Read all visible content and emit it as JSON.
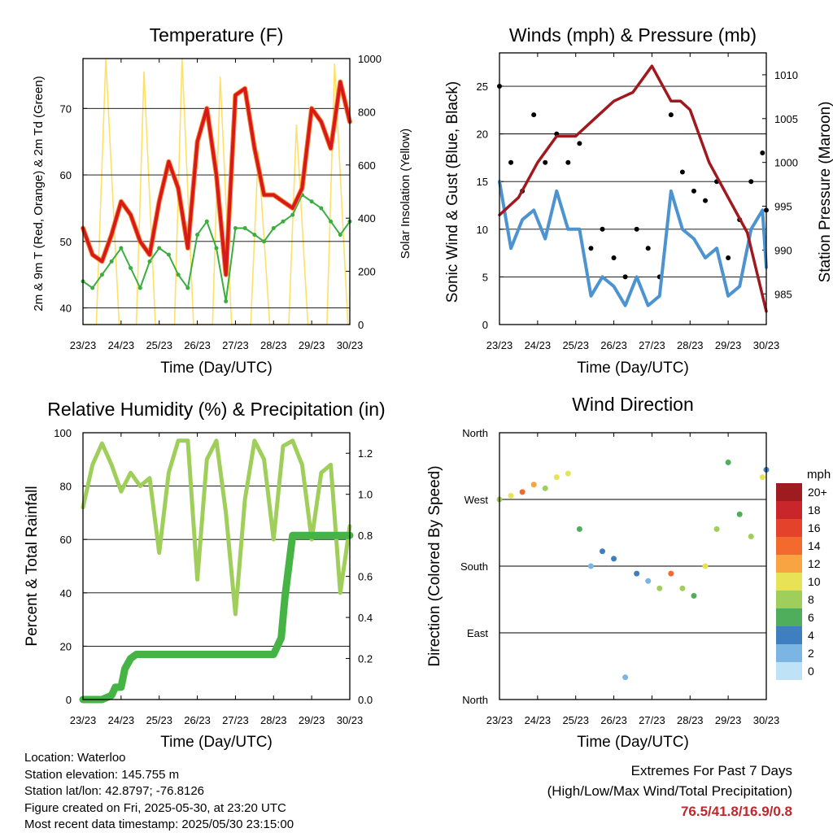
{
  "panels": {
    "temperature": {
      "title": "Temperature (F)",
      "ylabel": "2m & 9m T (Red, Orange) & 2m Td (Green)",
      "y2label": "Solar Insolation (Yellow)",
      "xlabel": "Time (Day/UTC)",
      "xticks": [
        "23/23",
        "24/23",
        "25/23",
        "26/23",
        "27/23",
        "28/23",
        "29/23",
        "30/23"
      ],
      "yticks": [
        "40",
        "50",
        "60",
        "70"
      ],
      "y2ticks": [
        "0",
        "200",
        "400",
        "600",
        "800",
        "1000"
      ]
    },
    "wind": {
      "title": "Winds (mph) & Pressure (mb)",
      "ylabel": "Sonic Wind & Gust (Blue, Black)",
      "y2label": "Station Pressure (Maroon)",
      "xlabel": "Time (Day/UTC)",
      "xticks": [
        "23/23",
        "24/23",
        "25/23",
        "26/23",
        "27/23",
        "28/23",
        "29/23",
        "30/23"
      ],
      "yticks": [
        "0",
        "5",
        "10",
        "15",
        "20",
        "25"
      ],
      "y2ticks": [
        "985",
        "990",
        "995",
        "1000",
        "1005",
        "1010"
      ]
    },
    "humidity": {
      "title": "Relative Humidity (%) & Precipitation (in)",
      "ylabel": "Percent & Total Rainfall",
      "xlabel": "Time (Day/UTC)",
      "xticks": [
        "23/23",
        "24/23",
        "25/23",
        "26/23",
        "27/23",
        "28/23",
        "29/23",
        "30/23"
      ],
      "yticks": [
        "0",
        "20",
        "40",
        "60",
        "80",
        "100"
      ],
      "y2ticks": [
        "0.0",
        "0.2",
        "0.4",
        "0.6",
        "0.8",
        "1.0",
        "1.2"
      ]
    },
    "direction": {
      "title": "Wind Direction",
      "ylabel": "Direction (Colored By Speed)",
      "xlabel": "Time (Day/UTC)",
      "xticks": [
        "23/23",
        "24/23",
        "25/23",
        "26/23",
        "27/23",
        "28/23",
        "29/23",
        "30/23"
      ],
      "yticks": [
        "North",
        "East",
        "South",
        "West",
        "North"
      ],
      "colorbar_title": "mph",
      "colorbar_labels": [
        "20+",
        "18",
        "16",
        "14",
        "12",
        "10",
        "8",
        "6",
        "4",
        "2",
        "0"
      ],
      "colorbar_colors": [
        "#9e1b1f",
        "#c8262b",
        "#e4422b",
        "#f26a2d",
        "#f9a443",
        "#e8e356",
        "#9fcf5a",
        "#4fae5c",
        "#3f7fc0",
        "#7ab5e4",
        "#bfe2f7"
      ]
    }
  },
  "info": {
    "location": "Location: Waterloo",
    "elevation": "Station elevation: 145.755 m",
    "latlon": "Station lat/lon: 42.8797; -76.8126",
    "created": "Figure created on Fri, 2025-05-30, at 23:20 UTC",
    "recent": "Most recent data timestamp: 2025/05/30 23:15:00"
  },
  "extremes": {
    "title": "Extremes For Past 7 Days",
    "subtitle": "(High/Low/Max Wind/Total Precipitation)",
    "values": "76.5/41.8/16.9/0.8"
  },
  "colors": {
    "temp_2m": "#d7191c",
    "temp_9m": "#f7882f",
    "dewpoint": "#3aae3f",
    "solar": "#ffe066",
    "wind": "#4c93d0",
    "gust": "#000000",
    "pressure": "#a0191e",
    "rh": "#9fcf5a",
    "precip": "#45b445"
  },
  "chart_data": [
    {
      "type": "line",
      "title": "Temperature (F)",
      "xlabel": "Time (Day/UTC)",
      "ylabel": "2m & 9m T (Red, Orange) & 2m Td (Green)",
      "y2label": "Solar Insolation (Yellow)",
      "xlim": [
        0,
        7
      ],
      "ylim": [
        37.5,
        77.5
      ],
      "y2lim": [
        0,
        1000
      ],
      "series": [
        {
          "name": "2m T",
          "x": [
            0,
            0.25,
            0.5,
            0.75,
            1,
            1.25,
            1.5,
            1.75,
            2,
            2.25,
            2.5,
            2.75,
            3,
            3.25,
            3.5,
            3.75,
            4,
            4.25,
            4.5,
            4.75,
            5,
            5.25,
            5.5,
            5.75,
            6,
            6.25,
            6.5,
            6.75,
            7
          ],
          "values": [
            52,
            48,
            47,
            51,
            56,
            54,
            50,
            48,
            56,
            62,
            58,
            49,
            65,
            70,
            60,
            45,
            72,
            73,
            64,
            57,
            57,
            56,
            55,
            58,
            70,
            68,
            64,
            74,
            68
          ]
        },
        {
          "name": "2m Td",
          "x": [
            0,
            0.25,
            0.5,
            0.75,
            1,
            1.25,
            1.5,
            1.75,
            2,
            2.25,
            2.5,
            2.75,
            3,
            3.25,
            3.5,
            3.75,
            4,
            4.25,
            4.5,
            4.75,
            5,
            5.25,
            5.5,
            5.75,
            6,
            6.25,
            6.5,
            6.75,
            7
          ],
          "values": [
            44,
            43,
            45,
            47,
            49,
            46,
            43,
            47,
            49,
            48,
            45,
            43,
            51,
            53,
            49,
            41,
            52,
            52,
            51,
            50,
            52,
            53,
            54,
            57,
            56,
            55,
            53,
            51,
            53
          ]
        },
        {
          "name": "Solar Insolation",
          "axis": "y2",
          "x": [
            0,
            0.35,
            0.6,
            0.95,
            1.4,
            1.6,
            1.9,
            2.4,
            2.6,
            2.9,
            3.4,
            3.6,
            3.9,
            4.4,
            4.6,
            4.9,
            5.4,
            5.6,
            5.9,
            6.4,
            6.6,
            6.95,
            7
          ],
          "values": [
            0,
            0,
            1000,
            0,
            0,
            950,
            0,
            0,
            1000,
            0,
            0,
            930,
            0,
            0,
            650,
            0,
            0,
            750,
            0,
            0,
            980,
            0,
            0
          ]
        }
      ]
    },
    {
      "type": "scatter",
      "title": "Winds (mph) & Pressure (mb)",
      "xlabel": "Time (Day/UTC)",
      "ylabel": "Sonic Wind & Gust (Blue, Black)",
      "y2label": "Station Pressure (Maroon)",
      "xlim": [
        0,
        7
      ],
      "ylim": [
        0,
        28.5
      ],
      "y2lim": [
        981.5,
        1012.5
      ],
      "series": [
        {
          "name": "Sonic Wind",
          "x": [
            0,
            0.3,
            0.6,
            0.9,
            1.2,
            1.5,
            1.8,
            2.1,
            2.4,
            2.7,
            3,
            3.3,
            3.6,
            3.9,
            4.2,
            4.5,
            4.8,
            5.1,
            5.4,
            5.7,
            6,
            6.3,
            6.6,
            6.9,
            7
          ],
          "values": [
            15,
            8,
            11,
            12,
            9,
            14,
            10,
            10,
            3,
            5,
            4,
            2,
            5,
            2,
            3,
            14,
            10,
            9,
            7,
            8,
            3,
            4,
            10,
            12,
            6
          ]
        },
        {
          "name": "Gust",
          "x": [
            0,
            0.3,
            0.6,
            0.9,
            1.2,
            1.5,
            1.8,
            2.1,
            2.4,
            2.7,
            3,
            3.3,
            3.6,
            3.9,
            4.2,
            4.5,
            4.8,
            5.1,
            5.4,
            5.7,
            6,
            6.3,
            6.6,
            6.9,
            7
          ],
          "values": [
            25,
            17,
            14,
            22,
            17,
            20,
            17,
            19,
            8,
            10,
            7,
            5,
            10,
            8,
            5,
            22,
            16,
            14,
            13,
            15,
            7,
            11,
            15,
            18,
            12
          ]
        },
        {
          "name": "Station Pressure",
          "axis": "y2",
          "x": [
            0,
            0.5,
            1,
            1.5,
            2,
            2.5,
            3,
            3.5,
            4,
            4.25,
            4.5,
            4.75,
            5,
            5.5,
            6,
            6.5,
            7
          ],
          "values": [
            994,
            996,
            1000,
            1003,
            1003,
            1005,
            1007,
            1008,
            1011,
            1009,
            1007,
            1007,
            1006,
            1000,
            996,
            992,
            983
          ]
        }
      ]
    },
    {
      "type": "line",
      "title": "Relative Humidity (%) & Precipitation (in)",
      "xlabel": "Time (Day/UTC)",
      "ylabel": "Percent & Total Rainfall",
      "xlim": [
        0,
        7
      ],
      "ylim": [
        0,
        100
      ],
      "y2lim": [
        0,
        1.3
      ],
      "series": [
        {
          "name": "Relative Humidity",
          "x": [
            0,
            0.25,
            0.5,
            0.75,
            1,
            1.25,
            1.5,
            1.75,
            2,
            2.25,
            2.5,
            2.75,
            3,
            3.25,
            3.5,
            3.75,
            4,
            4.25,
            4.5,
            4.75,
            5,
            5.25,
            5.5,
            5.75,
            6,
            6.25,
            6.5,
            6.75,
            7
          ],
          "values": [
            72,
            88,
            96,
            88,
            78,
            85,
            80,
            83,
            55,
            85,
            97,
            97,
            45,
            90,
            97,
            70,
            32,
            75,
            97,
            90,
            60,
            95,
            97,
            88,
            60,
            85,
            88,
            40,
            65
          ]
        },
        {
          "name": "Total Precipitation",
          "axis": "y2",
          "x": [
            0,
            0.5,
            0.75,
            0.85,
            1,
            1.1,
            1.25,
            1.4,
            2,
            4,
            5,
            5.2,
            5.3,
            5.5,
            6,
            7
          ],
          "values": [
            0,
            0,
            0.02,
            0.06,
            0.06,
            0.15,
            0.2,
            0.22,
            0.22,
            0.22,
            0.22,
            0.3,
            0.5,
            0.8,
            0.8,
            0.8
          ]
        }
      ]
    },
    {
      "type": "scatter",
      "title": "Wind Direction",
      "xlabel": "Time (Day/UTC)",
      "ylabel": "Direction (Colored By Speed)",
      "xlim": [
        0,
        7
      ],
      "ylim": [
        0,
        360
      ],
      "colorbar": {
        "title": "mph",
        "range": [
          0,
          20
        ]
      },
      "series": [
        {
          "name": "Wind Direction",
          "x": [
            0,
            0.3,
            0.6,
            0.9,
            1.2,
            1.5,
            1.8,
            2.1,
            2.4,
            2.7,
            3,
            3.3,
            3.6,
            3.9,
            4.2,
            4.5,
            4.8,
            5.1,
            5.4,
            5.7,
            6,
            6.3,
            6.6,
            6.9,
            7
          ],
          "values": [
            270,
            275,
            280,
            290,
            285,
            300,
            305,
            230,
            180,
            200,
            190,
            30,
            170,
            160,
            150,
            170,
            150,
            140,
            180,
            230,
            320,
            250,
            220,
            300,
            310
          ],
          "speeds": [
            8,
            10,
            14,
            12,
            9,
            11,
            10,
            6,
            3,
            4,
            5,
            2,
            5,
            3,
            8,
            15,
            9,
            6,
            10,
            8,
            6,
            7,
            8,
            10,
            5
          ]
        }
      ]
    }
  ]
}
